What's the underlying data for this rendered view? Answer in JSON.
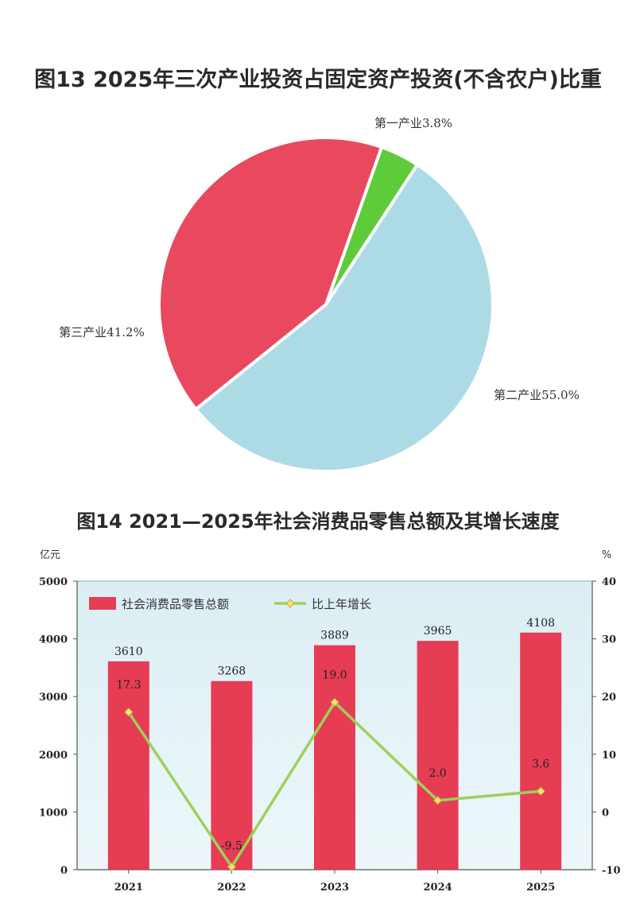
{
  "chart_data": [
    {
      "type": "pie",
      "title": "图13   2025年三次产业投资占固定资产投资(不含农户)比重",
      "slices": [
        {
          "name": "第一产业",
          "value": 3.8,
          "label": "第一产业3.8%",
          "color": "#5ecb3a"
        },
        {
          "name": "第二产业",
          "value": 55.0,
          "label": "第二产业55.0%",
          "color": "#acdbe6"
        },
        {
          "name": "第三产业",
          "value": 41.2,
          "label": "第三产业41.2%",
          "color": "#e8495e"
        }
      ]
    },
    {
      "type": "bar",
      "title": "图14   2021—2025年社会消费品零售总额及其增长速度",
      "categories": [
        "2021",
        "2022",
        "2023",
        "2024",
        "2025"
      ],
      "ylabel_left": "亿元",
      "ylabel_right": "%",
      "ylim_left": [
        0,
        5000
      ],
      "ylim_right": [
        -10,
        40
      ],
      "yticks_left": [
        "0",
        "1000",
        "2000",
        "3000",
        "4000",
        "5000"
      ],
      "yticks_right": [
        "-10",
        "0",
        "10",
        "20",
        "30",
        "40"
      ],
      "legend_position": "top-left",
      "series": [
        {
          "name": "社会消费品零售总额",
          "type": "bar",
          "axis": "left",
          "color": "#e63c54",
          "values": [
            3610,
            3268,
            3889,
            3965,
            4108
          ]
        },
        {
          "name": "比上年增长",
          "type": "line",
          "axis": "right",
          "color": "#9ed05a",
          "values": [
            17.3,
            -9.5,
            19.0,
            2.0,
            3.6
          ],
          "labels": [
            "17.3",
            "-9.5",
            "19.0",
            "2.0",
            "3.6"
          ]
        }
      ]
    }
  ]
}
